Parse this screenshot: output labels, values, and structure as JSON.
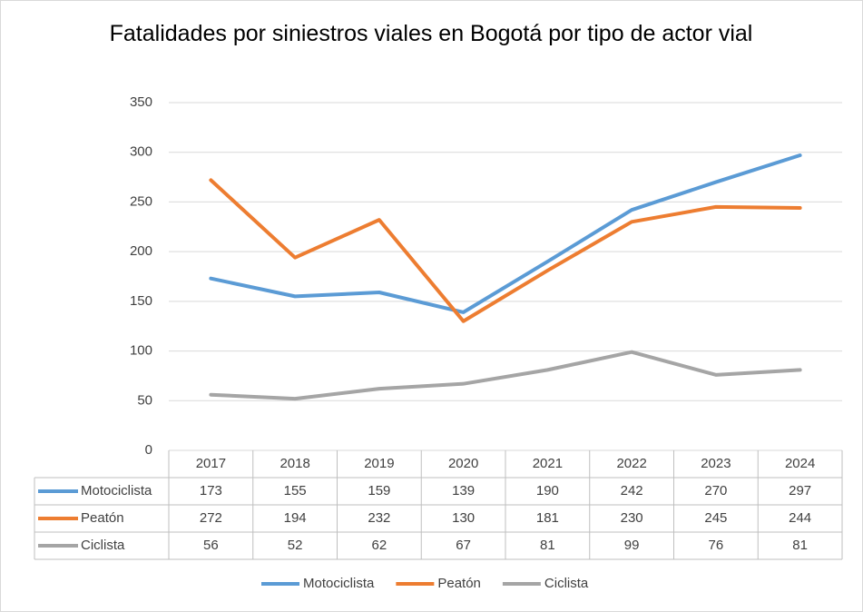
{
  "chart_data": {
    "type": "line",
    "title": "Fatalidades por siniestros viales en Bogotá por tipo de actor vial",
    "categories": [
      "2017",
      "2018",
      "2019",
      "2020",
      "2021",
      "2022",
      "2023",
      "2024"
    ],
    "series": [
      {
        "name": "Motociclista",
        "color": "#5b9bd5",
        "values": [
          173,
          155,
          159,
          139,
          190,
          242,
          270,
          297
        ]
      },
      {
        "name": "Peatón",
        "color": "#ed7d31",
        "values": [
          272,
          194,
          232,
          130,
          181,
          230,
          245,
          244
        ]
      },
      {
        "name": "Ciclista",
        "color": "#a5a5a5",
        "values": [
          56,
          52,
          62,
          67,
          81,
          99,
          76,
          81
        ]
      }
    ],
    "ylim": [
      0,
      350
    ],
    "yticks": [
      0,
      50,
      100,
      150,
      200,
      250,
      300,
      350
    ],
    "grid": true,
    "legend": "bottom",
    "data_table": true
  }
}
